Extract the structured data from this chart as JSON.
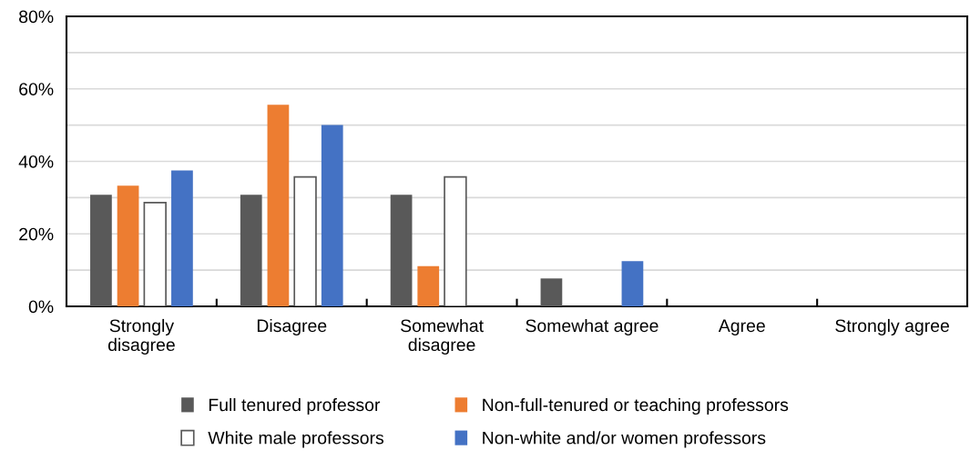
{
  "chart_data": {
    "type": "bar",
    "categories": [
      "Strongly disagree",
      "Disagree",
      "Somewhat disagree",
      "Somewhat agree",
      "Agree",
      "Strongly agree"
    ],
    "series": [
      {
        "name": "Full tenured professor",
        "color": "#595959",
        "values": [
          30.8,
          30.8,
          30.8,
          7.7,
          0,
          0
        ]
      },
      {
        "name": "Non-full-tenured or teaching professors",
        "color": "#ed7d31",
        "values": [
          33.3,
          55.6,
          11.1,
          0,
          0,
          0
        ]
      },
      {
        "name": "White male professors",
        "color": "#ffffff",
        "values": [
          28.6,
          35.7,
          35.7,
          0,
          0,
          0
        ]
      },
      {
        "name": "Non-white and/or women professors",
        "color": "#4472c4",
        "values": [
          37.5,
          50,
          0,
          12.5,
          0,
          0
        ]
      }
    ],
    "ylim": [
      0,
      80
    ],
    "yticks": [
      {
        "value": 0,
        "label": "0%"
      },
      {
        "value": 10,
        "label": null
      },
      {
        "value": 20,
        "label": "20%"
      },
      {
        "value": 30,
        "label": null
      },
      {
        "value": 40,
        "label": "40%"
      },
      {
        "value": 50,
        "label": null
      },
      {
        "value": 60,
        "label": "60%"
      },
      {
        "value": 70,
        "label": null
      },
      {
        "value": 80,
        "label": "80%"
      }
    ],
    "grid": "y",
    "legend": "bottom"
  }
}
